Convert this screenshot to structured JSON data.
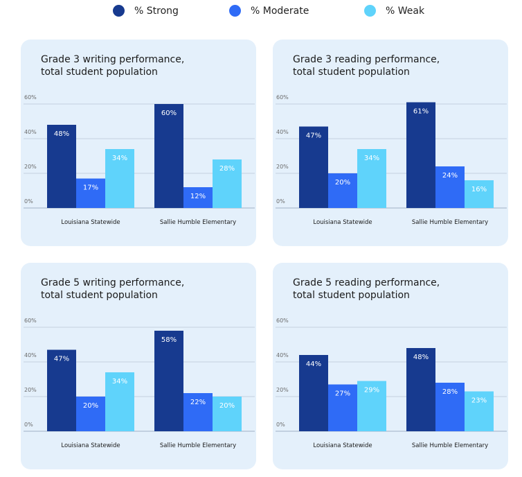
{
  "legend": [
    {
      "label": "% Strong",
      "color": "#173a8f"
    },
    {
      "label": "% Moderate",
      "color": "#2f6bf6"
    },
    {
      "label": "% Weak",
      "color": "#5fd3fb"
    }
  ],
  "chart_data": [
    {
      "type": "bar",
      "title": "Grade 3 writing performance,\ntotal student population",
      "categories": [
        "Louisiana Statewide",
        "Sallie Humble Elementary"
      ],
      "series": [
        {
          "name": "% Strong",
          "values": [
            48,
            60
          ]
        },
        {
          "name": "% Moderate",
          "values": [
            17,
            12
          ]
        },
        {
          "name": "% Weak",
          "values": [
            34,
            28
          ]
        }
      ],
      "yticks": [
        "0%",
        "20%",
        "40%",
        "60%"
      ],
      "ylim": [
        0,
        60
      ],
      "grid": true
    },
    {
      "type": "bar",
      "title": "Grade 3 reading performance,\ntotal student population",
      "categories": [
        "Louisiana Statewide",
        "Sallie Humble Elementary"
      ],
      "series": [
        {
          "name": "% Strong",
          "values": [
            47,
            61
          ]
        },
        {
          "name": "% Moderate",
          "values": [
            20,
            24
          ]
        },
        {
          "name": "% Weak",
          "values": [
            34,
            16
          ]
        }
      ],
      "yticks": [
        "0%",
        "20%",
        "40%",
        "60%"
      ],
      "ylim": [
        0,
        60
      ],
      "grid": true
    },
    {
      "type": "bar",
      "title": "Grade 5 writing performance,\ntotal student population",
      "categories": [
        "Louisiana Statewide",
        "Sallie Humble Elementary"
      ],
      "series": [
        {
          "name": "% Strong",
          "values": [
            47,
            58
          ]
        },
        {
          "name": "% Moderate",
          "values": [
            20,
            22
          ]
        },
        {
          "name": "% Weak",
          "values": [
            34,
            20
          ]
        }
      ],
      "yticks": [
        "0%",
        "20%",
        "40%",
        "60%"
      ],
      "ylim": [
        0,
        60
      ],
      "grid": true
    },
    {
      "type": "bar",
      "title": "Grade 5 reading performance,\ntotal student population",
      "categories": [
        "Louisiana Statewide",
        "Sallie Humble Elementary"
      ],
      "series": [
        {
          "name": "% Strong",
          "values": [
            44,
            48
          ]
        },
        {
          "name": "% Moderate",
          "values": [
            27,
            28
          ]
        },
        {
          "name": "% Weak",
          "values": [
            29,
            23
          ]
        }
      ],
      "yticks": [
        "0%",
        "20%",
        "40%",
        "60%"
      ],
      "ylim": [
        0,
        60
      ],
      "grid": true
    }
  ]
}
